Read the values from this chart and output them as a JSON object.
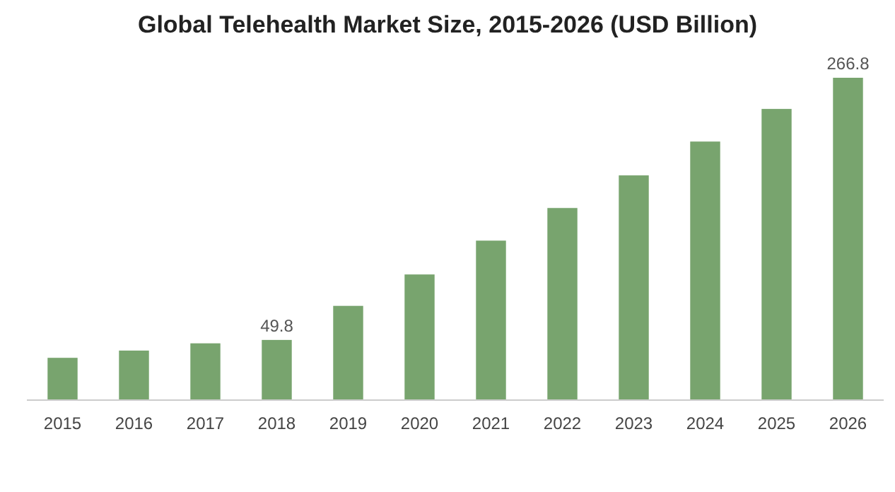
{
  "chart_data": {
    "type": "bar",
    "title": "Global Telehealth Market Size, 2015-2026 (USD Billion)",
    "categories": [
      "2015",
      "2016",
      "2017",
      "2018",
      "2019",
      "2020",
      "2021",
      "2022",
      "2023",
      "2024",
      "2025",
      "2026"
    ],
    "values": [
      35,
      41,
      47,
      49.8,
      78,
      104,
      132,
      159,
      186,
      214,
      241,
      266.8
    ],
    "value_labels": [
      null,
      null,
      null,
      "49.8",
      null,
      null,
      null,
      null,
      null,
      null,
      null,
      "266.8"
    ],
    "color": "#78a46e"
  }
}
